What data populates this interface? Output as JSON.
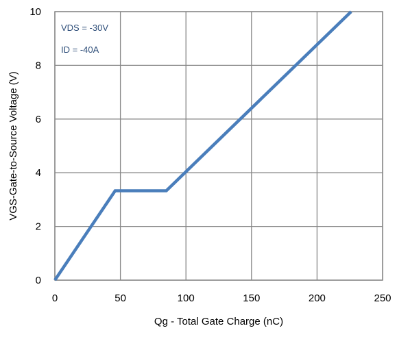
{
  "chart_data": {
    "type": "line",
    "xlabel": "Qg - Total Gate Charge (nC)",
    "ylabel": "VGS-Gate-to-Source Voltage (V)",
    "xlim": [
      0,
      250
    ],
    "ylim": [
      0,
      10
    ],
    "x_ticks": [
      "0",
      "50",
      "100",
      "150",
      "200",
      "250"
    ],
    "y_ticks": [
      "0",
      "2",
      "4",
      "6",
      "8",
      "10"
    ],
    "grid": true,
    "annotations": [
      "VDS = -30V",
      "ID = -40A"
    ],
    "series": [
      {
        "x": [
          0,
          46,
          85,
          226
        ],
        "y": [
          0,
          3.33,
          3.33,
          10
        ],
        "color": "#4a7ebb"
      }
    ]
  }
}
